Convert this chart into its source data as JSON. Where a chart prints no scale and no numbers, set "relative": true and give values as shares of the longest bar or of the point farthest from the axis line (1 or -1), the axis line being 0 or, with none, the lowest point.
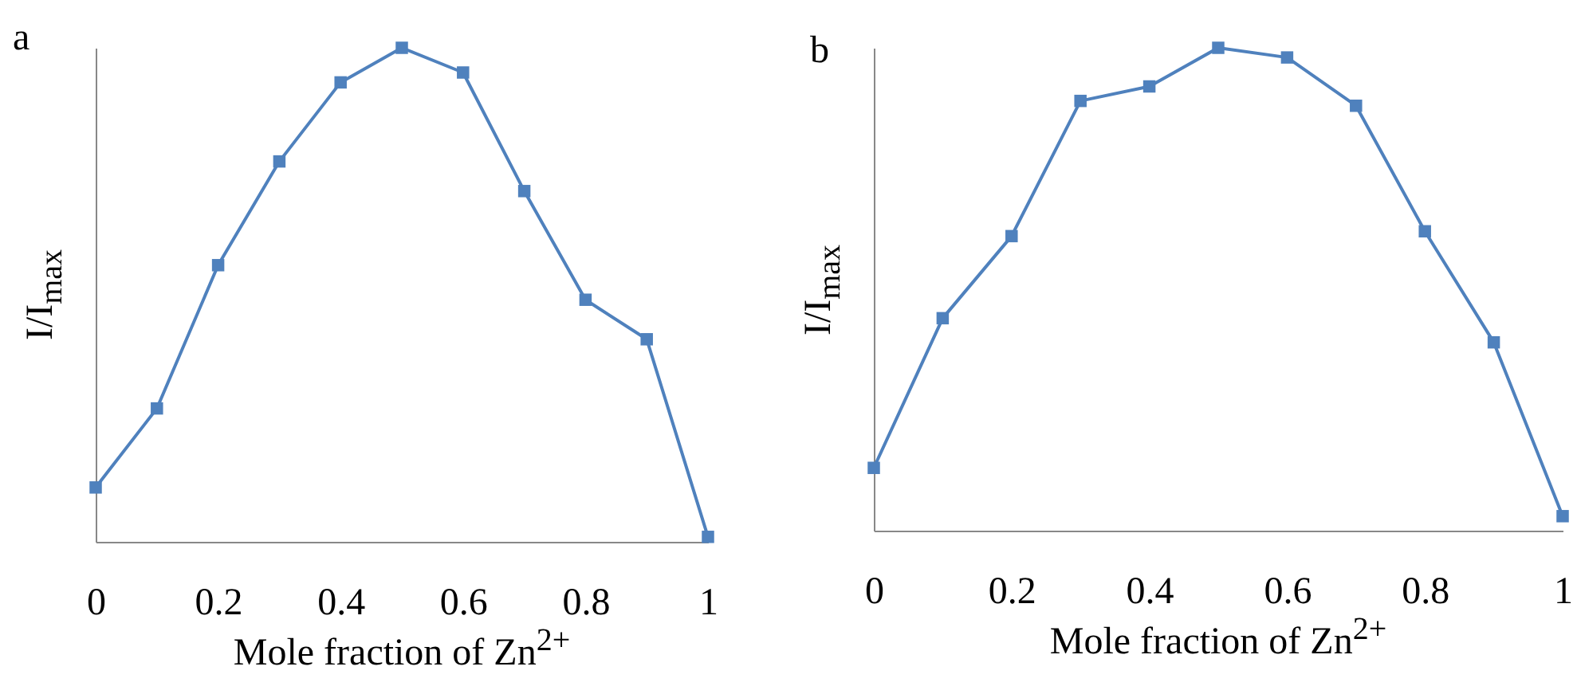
{
  "chart_data": [
    {
      "type": "line",
      "title": "a",
      "xlabel": "Mole fraction of Zn$^{2+}$",
      "ylabel": "I/I$_{max}$",
      "relative": true,
      "marker": "square",
      "xlim": [
        0,
        1
      ],
      "xticks": [
        0,
        0.2,
        0.4,
        0.6,
        0.8,
        1
      ],
      "x": [
        0,
        0.1,
        0.2,
        0.3,
        0.4,
        0.5,
        0.6,
        0.7,
        0.8,
        0.9,
        1
      ],
      "series": [
        {
          "color": "#4f81bd",
          "values": [
            0.11,
            0.27,
            0.56,
            0.77,
            0.93,
            1,
            0.95,
            0.71,
            0.49,
            0.41,
            0.01
          ]
        }
      ]
    },
    {
      "type": "line",
      "title": "b",
      "xlabel": "Mole fraction of Zn$^{2+}$",
      "ylabel": "I/I$_{max}$",
      "relative": true,
      "marker": "square",
      "xlim": [
        0,
        1
      ],
      "xticks": [
        0,
        0.2,
        0.4,
        0.6,
        0.8,
        1
      ],
      "x": [
        0,
        0.1,
        0.2,
        0.3,
        0.4,
        0.5,
        0.6,
        0.7,
        0.8,
        0.9,
        1
      ],
      "series": [
        {
          "color": "#4f81bd",
          "values": [
            0.13,
            0.44,
            0.61,
            0.89,
            0.92,
            1,
            0.98,
            0.88,
            0.62,
            0.39,
            0.03
          ]
        }
      ]
    }
  ]
}
